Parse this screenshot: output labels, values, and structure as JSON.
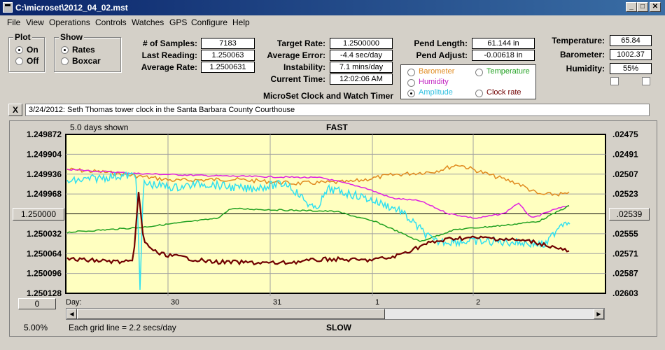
{
  "window": {
    "title": "C:\\microset\\2012_04_02.mst"
  },
  "menu": [
    "File",
    "View",
    "Operations",
    "Controls",
    "Watches",
    "GPS",
    "Configure",
    "Help"
  ],
  "plot_group": {
    "title": "Plot",
    "on": "On",
    "off": "Off",
    "selected": "On"
  },
  "show_group": {
    "title": "Show",
    "rates": "Rates",
    "boxcar": "Boxcar",
    "selected": "Rates"
  },
  "stats": {
    "samples_label": "# of Samples:",
    "samples": "7183",
    "last_label": "Last Reading:",
    "last": "1.250063",
    "avg_rate_label": "Average Rate:",
    "avg_rate": "1.2500631",
    "target_label": "Target Rate:",
    "target": "1.2500000",
    "avg_err_label": "Average Error:",
    "avg_err": "-4.4 sec/day",
    "instab_label": "Instability:",
    "instab": "7.1 mins/day",
    "time_label": "Current Time:",
    "time": "12:02:06 AM",
    "pend_len_label": "Pend Length:",
    "pend_len": "61.144 in",
    "pend_adj_label": "Pend Adjust:",
    "pend_adj": "-0.00618 in",
    "temp_label": "Temperature:",
    "temp": "65.84",
    "baro_label": "Barometer:",
    "baro": "1002.37",
    "hum_label": "Humidity:",
    "hum": "55%"
  },
  "app_caption": "MicroSet Clock and Watch Timer",
  "series_select": {
    "barometer": "Barometer",
    "temperature": "Temperature",
    "humidity": "Humidity",
    "amplitude": "Amplitude",
    "clock_rate": "Clock rate",
    "selected": "Amplitude"
  },
  "notes_text": "3/24/2012: Seth Thomas tower clock in the Santa Barbara County Courthouse",
  "close_btn": "X",
  "chart_header": {
    "days_shown": "5.0 days shown",
    "fast": "FAST",
    "slow": "SLOW",
    "grid_note": "Each grid line = 2.2 secs/day",
    "percent": "5.00%",
    "left_btn": "1.250000",
    "right_btn": ".02539",
    "zero_btn": "0"
  },
  "chart_data": {
    "type": "line",
    "y_left_ticks": [
      "1.249872",
      "1.249904",
      "1.249936",
      "1.249968",
      "1.250000",
      "1.250032",
      "1.250064",
      "1.250096",
      "1.250128"
    ],
    "y_right_ticks": [
      ".02475",
      ".02491",
      ".02507",
      ".02523",
      ".02539",
      ".02555",
      ".02571",
      ".02587",
      ".02603"
    ],
    "x_label": "Day:",
    "x_ticks": [
      "30",
      "31",
      "1",
      "2"
    ],
    "colors": {
      "barometer": "#e08a1e",
      "humidity": "#e020e0",
      "temperature": "#20a020",
      "amplitude": "#30e0f0",
      "clock_rate": "#700000"
    },
    "ylim": [
      1.249872,
      1.250128
    ]
  }
}
